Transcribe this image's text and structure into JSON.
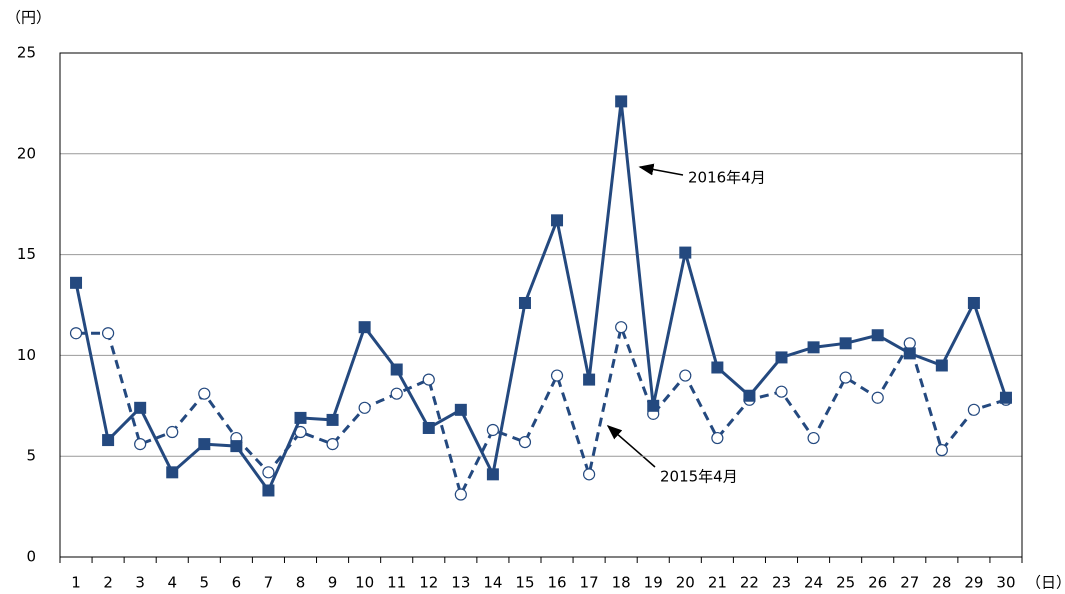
{
  "chart_data": {
    "type": "line",
    "y_unit_label": "（円）",
    "x_unit_label": "（日）",
    "categories": [
      "1",
      "2",
      "3",
      "4",
      "5",
      "6",
      "7",
      "8",
      "9",
      "10",
      "11",
      "12",
      "13",
      "14",
      "15",
      "16",
      "17",
      "18",
      "19",
      "20",
      "21",
      "22",
      "23",
      "24",
      "25",
      "26",
      "27",
      "28",
      "29",
      "30"
    ],
    "series": [
      {
        "color": "#24497f",
        "marker": "square",
        "dashed": false,
        "values": [
          13.6,
          5.8,
          7.4,
          4.2,
          5.6,
          5.5,
          3.3,
          6.9,
          6.8,
          11.4,
          9.3,
          6.4,
          7.3,
          4.1,
          12.6,
          16.7,
          8.8,
          22.6,
          7.5,
          15.1,
          9.4,
          8.0,
          9.9,
          10.4,
          10.6,
          11.0,
          10.1,
          9.5,
          12.6,
          7.9
        ]
      },
      {
        "color": "#24497f",
        "marker": "circle",
        "dashed": true,
        "values": [
          11.1,
          11.1,
          5.6,
          6.2,
          8.1,
          5.9,
          4.2,
          6.2,
          5.6,
          7.4,
          8.1,
          8.8,
          3.1,
          6.3,
          5.7,
          9.0,
          4.1,
          11.4,
          7.1,
          9.0,
          5.9,
          7.8,
          8.2,
          5.9,
          8.9,
          7.9,
          10.6,
          5.3,
          7.3,
          7.8
        ]
      }
    ],
    "annotations": [
      {
        "text": "2016年4月"
      },
      {
        "text": "2015年4月"
      }
    ],
    "ylim": [
      0,
      25
    ],
    "yticks": [
      0,
      5,
      10,
      15,
      20,
      25
    ],
    "grid": true
  }
}
